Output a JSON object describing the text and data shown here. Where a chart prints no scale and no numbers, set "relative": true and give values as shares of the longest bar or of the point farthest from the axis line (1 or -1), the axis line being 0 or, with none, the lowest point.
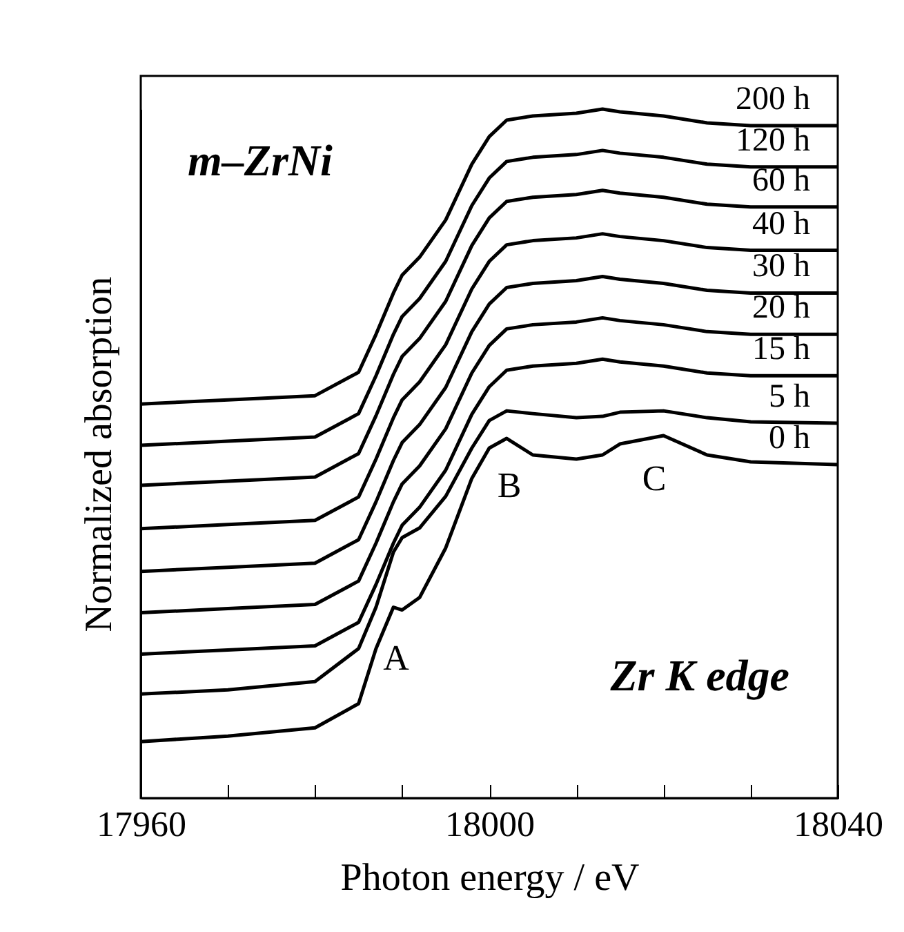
{
  "chart_data": {
    "type": "line",
    "relative": true,
    "xlabel": "Photon energy / eV",
    "ylabel": "Normalized absorption",
    "x": [
      17960,
      17970,
      17980,
      17985,
      17987,
      17989,
      17990,
      17992,
      17995,
      17998,
      18000,
      18002,
      18005,
      18010,
      18013,
      18015,
      18020,
      18025,
      18030,
      18040
    ],
    "xlim": [
      17960,
      18040
    ],
    "xticks": [
      17960,
      {
        "value": 17970,
        "label": null
      },
      {
        "value": 17980,
        "label": null
      },
      {
        "value": 17990,
        "label": null
      },
      18000,
      {
        "value": 18010,
        "label": null
      },
      {
        "value": 18020,
        "label": null
      },
      {
        "value": 18030,
        "label": null
      },
      18040
    ],
    "marker": "none",
    "line_style": "solid",
    "series": [
      {
        "name": "200 h",
        "color": "#000000",
        "values": [
          0.572,
          0.578,
          0.584,
          0.618,
          0.673,
          0.733,
          0.759,
          0.785,
          0.839,
          0.92,
          0.96,
          0.984,
          0.99,
          0.994,
          1.0,
          0.996,
          0.99,
          0.98,
          0.976,
          0.976
        ]
      },
      {
        "name": "120 h",
        "color": "#000000",
        "values": [
          0.512,
          0.518,
          0.524,
          0.558,
          0.613,
          0.673,
          0.699,
          0.725,
          0.779,
          0.86,
          0.9,
          0.924,
          0.93,
          0.934,
          0.94,
          0.936,
          0.93,
          0.92,
          0.916,
          0.916
        ]
      },
      {
        "name": "60 h",
        "color": "#000000",
        "values": [
          0.454,
          0.46,
          0.466,
          0.5,
          0.555,
          0.615,
          0.641,
          0.667,
          0.721,
          0.802,
          0.842,
          0.866,
          0.872,
          0.876,
          0.882,
          0.878,
          0.872,
          0.862,
          0.858,
          0.858
        ]
      },
      {
        "name": "40 h",
        "color": "#000000",
        "values": [
          0.391,
          0.397,
          0.403,
          0.437,
          0.492,
          0.552,
          0.578,
          0.604,
          0.658,
          0.739,
          0.779,
          0.803,
          0.809,
          0.813,
          0.819,
          0.815,
          0.809,
          0.799,
          0.795,
          0.795
        ]
      },
      {
        "name": "30 h",
        "color": "#000000",
        "values": [
          0.329,
          0.335,
          0.341,
          0.375,
          0.43,
          0.49,
          0.516,
          0.542,
          0.596,
          0.677,
          0.717,
          0.741,
          0.747,
          0.751,
          0.757,
          0.753,
          0.747,
          0.737,
          0.733,
          0.733
        ]
      },
      {
        "name": "20 h",
        "color": "#000000",
        "values": [
          0.269,
          0.275,
          0.281,
          0.315,
          0.37,
          0.43,
          0.456,
          0.482,
          0.536,
          0.617,
          0.657,
          0.681,
          0.687,
          0.691,
          0.697,
          0.693,
          0.687,
          0.677,
          0.673,
          0.673
        ]
      },
      {
        "name": "15 h",
        "color": "#000000",
        "values": [
          0.209,
          0.215,
          0.221,
          0.255,
          0.31,
          0.37,
          0.396,
          0.422,
          0.476,
          0.557,
          0.597,
          0.621,
          0.627,
          0.631,
          0.637,
          0.633,
          0.627,
          0.617,
          0.613,
          0.613
        ]
      },
      {
        "name": "5 h",
        "color": "#000000",
        "values": [
          0.151,
          0.157,
          0.169,
          0.217,
          0.277,
          0.357,
          0.378,
          0.392,
          0.438,
          0.508,
          0.548,
          0.562,
          0.558,
          0.552,
          0.554,
          0.56,
          0.562,
          0.552,
          0.546,
          0.544
        ]
      },
      {
        "name": "0 h",
        "color": "#000000",
        "values": [
          0.082,
          0.09,
          0.102,
          0.137,
          0.217,
          0.277,
          0.273,
          0.291,
          0.363,
          0.464,
          0.508,
          0.522,
          0.498,
          0.492,
          0.498,
          0.514,
          0.526,
          0.498,
          0.488,
          0.484
        ]
      }
    ],
    "annotations": [
      "m–ZrNi",
      "A",
      "B",
      "C",
      "Zr K edge"
    ]
  }
}
